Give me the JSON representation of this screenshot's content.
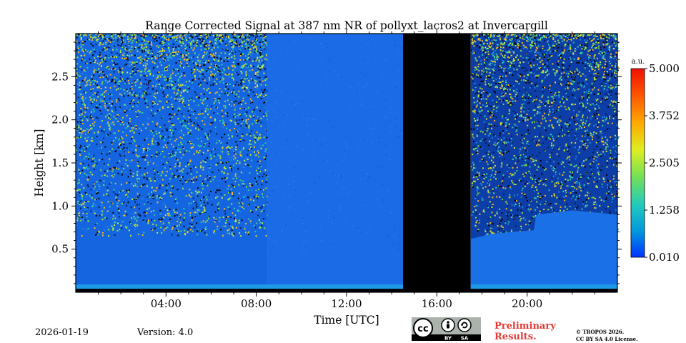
{
  "chart_data": {
    "type": "heatmap",
    "title": "Range Corrected Signal at 387 nm NR of pollyxt_lacros2 at Invercargill",
    "xlabel": "Time [UTC]",
    "ylabel": "Height [km]",
    "xlim_hours": [
      0,
      24
    ],
    "ylim_km": [
      0,
      3.0
    ],
    "x_ticks": [
      {
        "hour": 4,
        "label": "04:00"
      },
      {
        "hour": 8,
        "label": "08:00"
      },
      {
        "hour": 12,
        "label": "12:00"
      },
      {
        "hour": 16,
        "label": "16:00"
      },
      {
        "hour": 20,
        "label": "20:00"
      }
    ],
    "y_ticks": [
      {
        "km": 0.5,
        "label": "0.5"
      },
      {
        "km": 1.0,
        "label": "1.0"
      },
      {
        "km": 1.5,
        "label": "1.5"
      },
      {
        "km": 2.0,
        "label": "2.0"
      },
      {
        "km": 2.5,
        "label": "2.5"
      }
    ],
    "colorbar": {
      "unit": "a.u.",
      "min": 0.01,
      "max": 5.0,
      "tick_labels": [
        "5.000",
        "3.752",
        "2.505",
        "1.258",
        "0.010"
      ],
      "colors": [
        "#0033ff",
        "#0099dd",
        "#22ccbb",
        "#77e055",
        "#ddee22",
        "#ffaa00",
        "#ff5500",
        "#ee1100"
      ]
    },
    "segments": [
      {
        "name": "noisy-morning",
        "start_hour": 0,
        "end_hour": 8.5,
        "noise_level": "high",
        "background": "#1565e0"
      },
      {
        "name": "clean-day",
        "start_hour": 8.5,
        "end_hour": 14.5,
        "noise_level": "low",
        "background": "#1b6be6"
      },
      {
        "name": "no-data",
        "start_hour": 14.5,
        "end_hour": 17.5,
        "noise_level": "none",
        "background": "#000000"
      },
      {
        "name": "noisy-evening",
        "start_hour": 17.5,
        "end_hour": 24,
        "noise_level": "high",
        "background": "#0d3ea8"
      }
    ],
    "layer_top_km": [
      {
        "hour": 17.5,
        "km": 0.62
      },
      {
        "hour": 18.5,
        "km": 0.68
      },
      {
        "hour": 20.3,
        "km": 0.72
      },
      {
        "hour": 20.4,
        "km": 0.9
      },
      {
        "hour": 22,
        "km": 0.95
      },
      {
        "hour": 24,
        "km": 0.9
      }
    ]
  },
  "footer": {
    "date": "2026-01-19",
    "version": "Version: 4.0",
    "preliminary_line1": "Preliminary",
    "preliminary_line2": "Results.",
    "copyright_line1": "© TROPOS 2026.",
    "copyright_line2": "CC BY SA 4.0 License.",
    "cc_badge": {
      "cc": "cc",
      "by": "BY",
      "sa": "SA"
    }
  }
}
